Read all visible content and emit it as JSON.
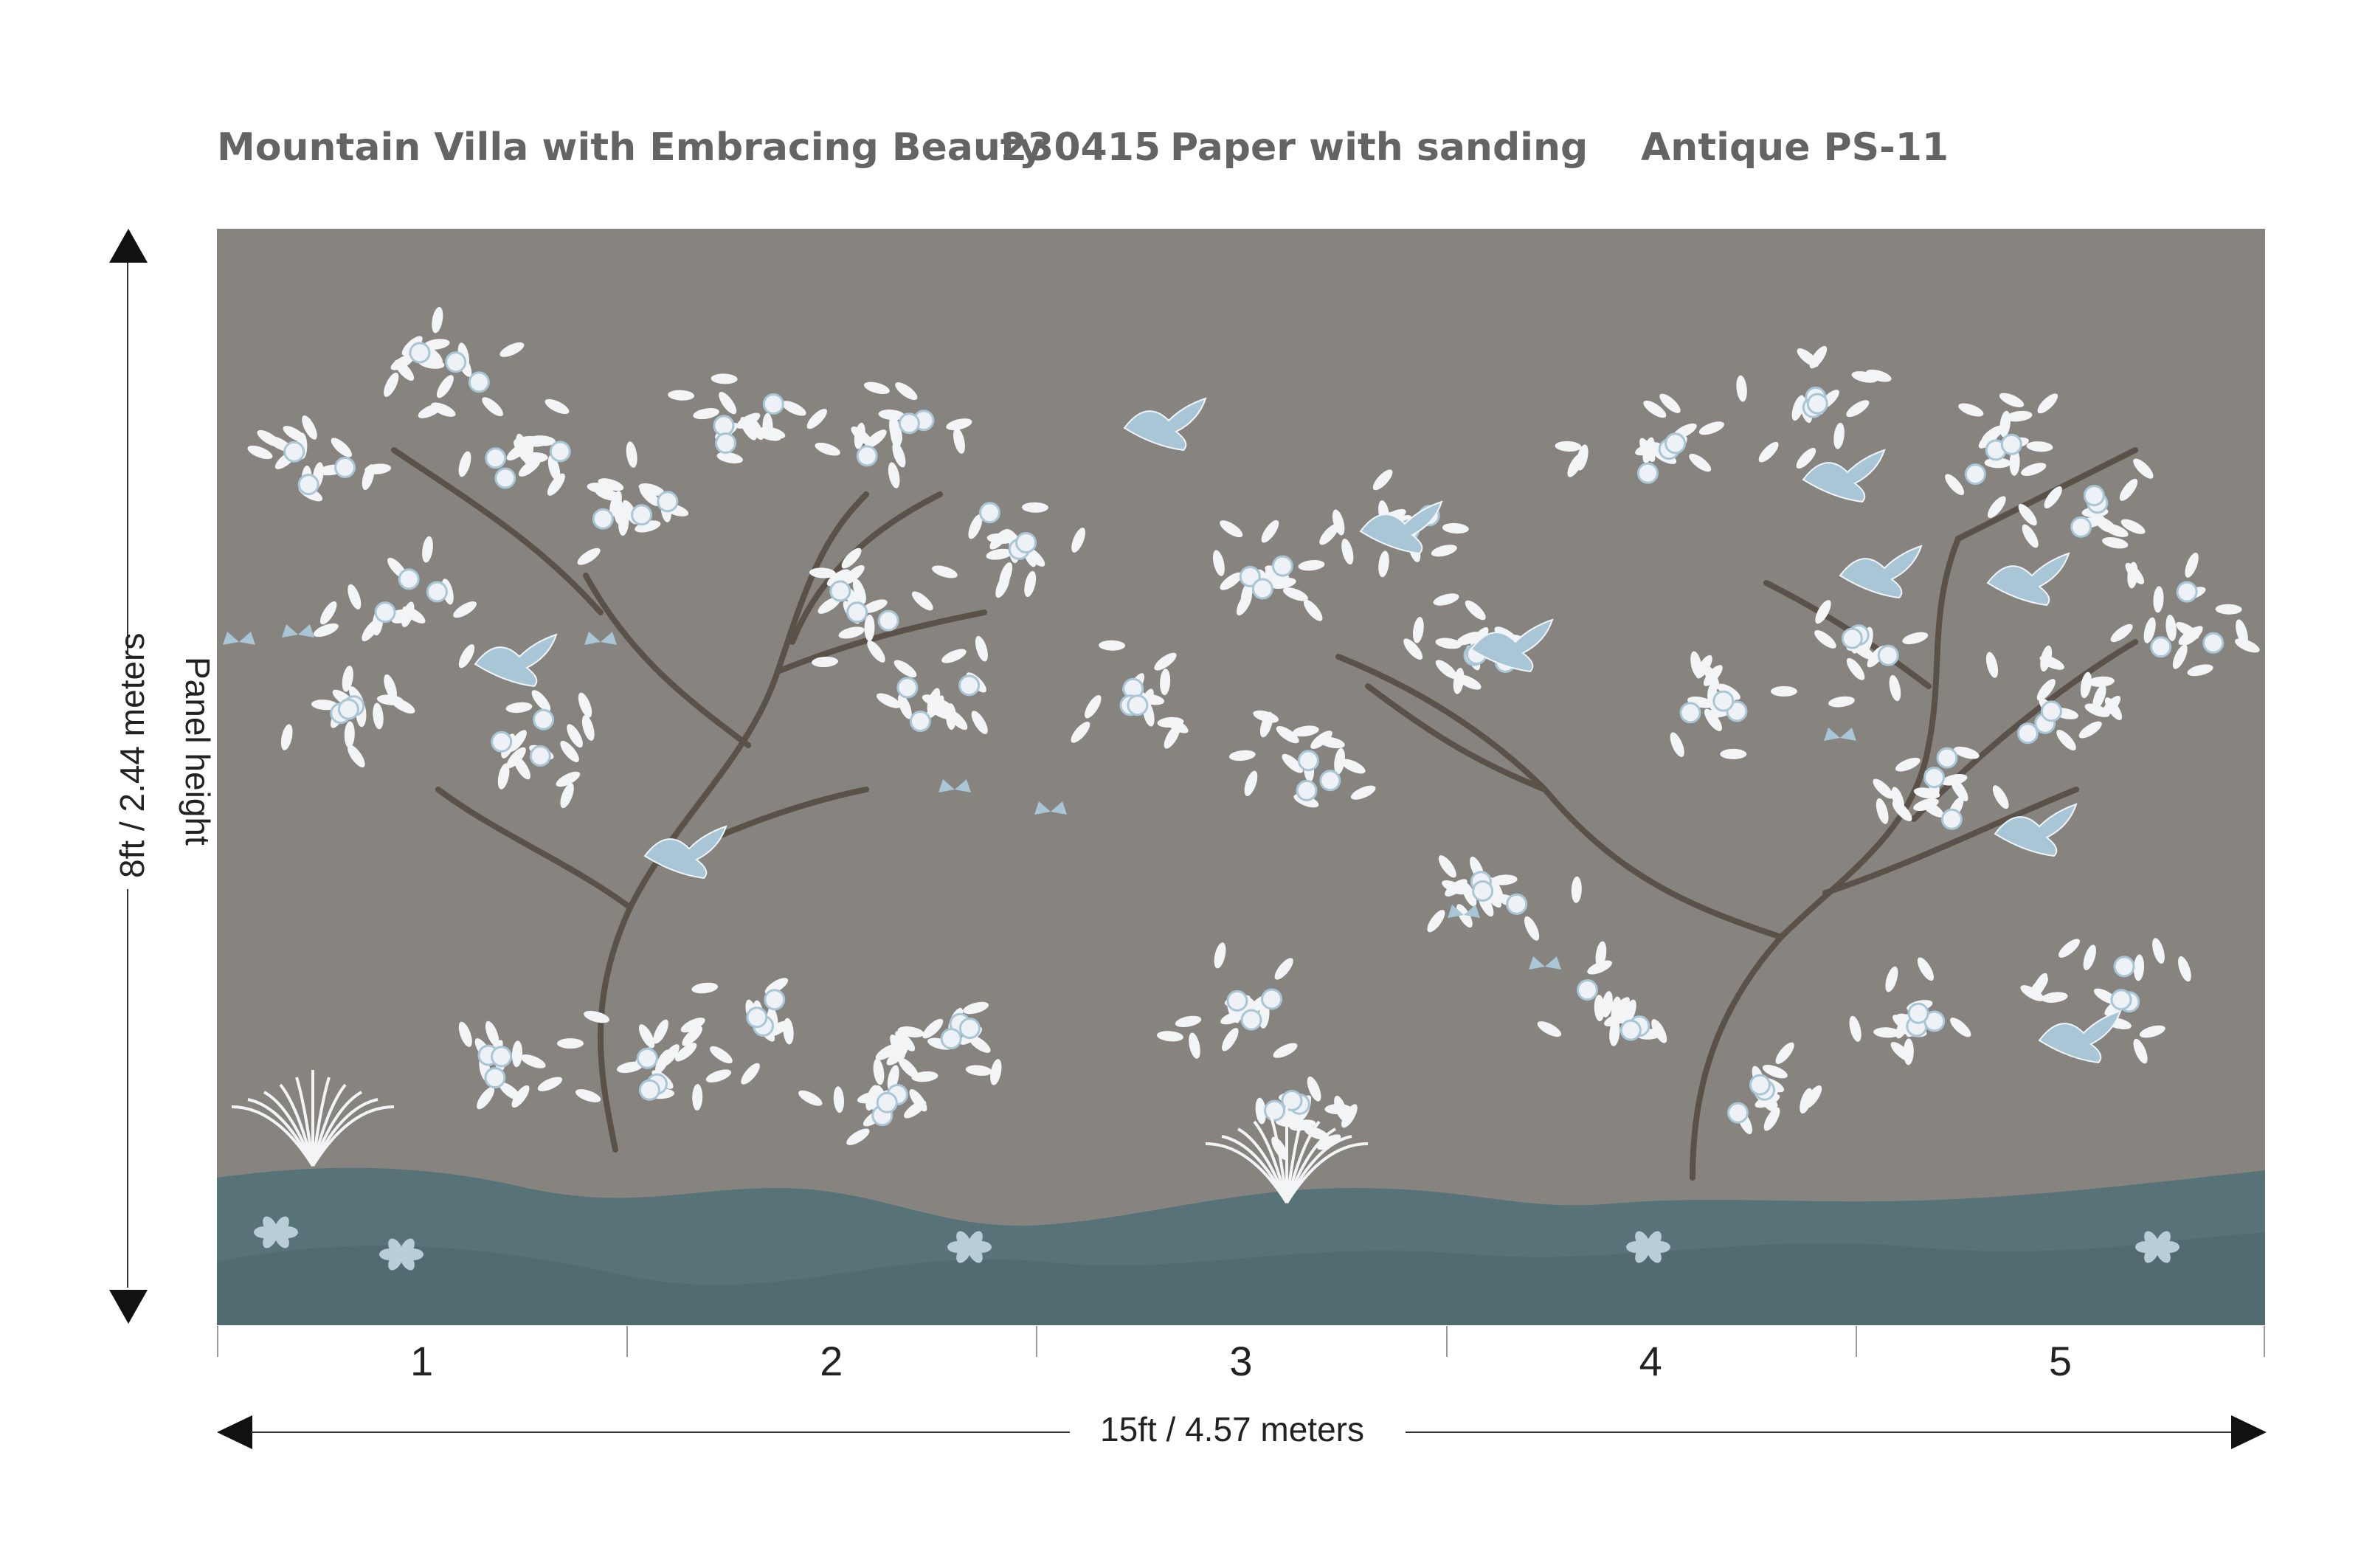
{
  "header": {
    "product_name": "Mountain Villa with Embracing Beauty",
    "product_code": "230415",
    "material": "Paper with sanding",
    "colorway": "Antique PS-11"
  },
  "dimensions": {
    "height_label_1": "Panel height",
    "height_label_2": "8ft / 2.44 meters",
    "width_label": "15ft  / 4.57 meters"
  },
  "panels": [
    "1",
    "2",
    "3",
    "4",
    "5"
  ],
  "colors": {
    "background": "#ffffff",
    "mural_ground": "#878480",
    "hills": "#587378",
    "foliage": "#f2f4f6",
    "accent_blue": "#a9c6d6",
    "branches": "#5a5148",
    "text": "#646464"
  },
  "mural": {
    "motifs": [
      "blossoming-trees",
      "birds",
      "butterflies",
      "rolling-hills",
      "flowering-shrubs"
    ]
  }
}
